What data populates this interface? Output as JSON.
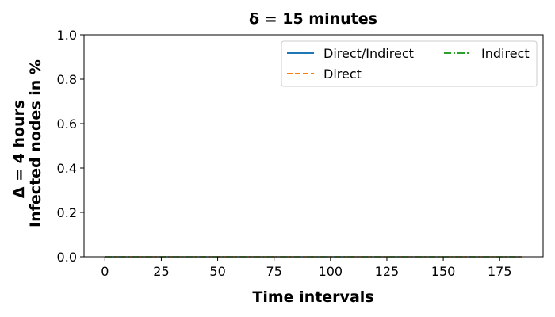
{
  "chart_data": {
    "type": "line",
    "title": "δ = 15 minutes",
    "xlabel": "Time intervals",
    "ylabel_line1": "Δ = 4 hours",
    "ylabel_line2": "Infected nodes in %",
    "xlim": [
      -9.25,
      194.25
    ],
    "ylim": [
      0.0,
      1.0
    ],
    "xticks": [
      0,
      25,
      50,
      75,
      100,
      125,
      150,
      175
    ],
    "yticks": [
      0.0,
      0.2,
      0.4,
      0.6,
      0.8,
      1.0
    ],
    "ytick_labels": [
      "0.0",
      "0.2",
      "0.4",
      "0.6",
      "0.8",
      "1.0"
    ],
    "grid": false,
    "legend_position": "upper right",
    "x": [
      0,
      185
    ],
    "series": [
      {
        "name": "Direct/Indirect",
        "color": "#1f77b4",
        "dash": "solid",
        "values": [
          0.0,
          0.0
        ]
      },
      {
        "name": "Direct",
        "color": "#ff7f0e",
        "dash": "dashed",
        "values": [
          0.0,
          0.0
        ]
      },
      {
        "name": "Indirect",
        "color": "#2ca02c",
        "dash": "dashdot",
        "values": [
          0.0,
          0.0
        ]
      }
    ]
  }
}
